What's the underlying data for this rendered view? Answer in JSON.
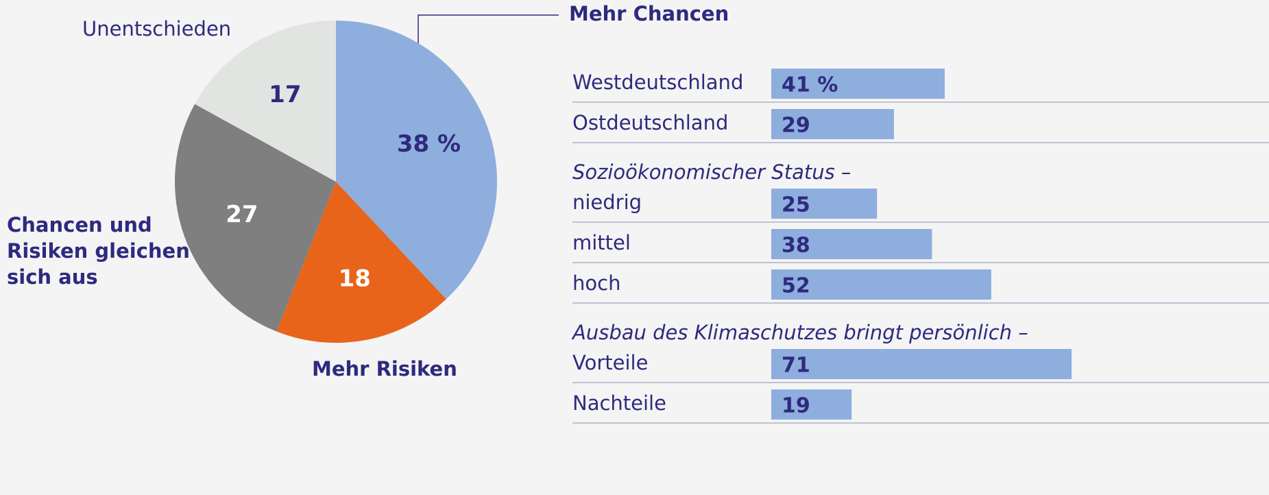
{
  "chart_data": [
    {
      "type": "pie",
      "categories": [
        "Mehr Chancen",
        "Mehr Risiken",
        "Chancen und Risiken gleichen sich aus",
        "Unentschieden"
      ],
      "values": [
        38,
        18,
        27,
        17
      ],
      "value_labels": [
        "38 %",
        "18",
        "27",
        "17"
      ],
      "colors": [
        "#8eaedd",
        "#e8641a",
        "#7f7f7f",
        "#e1e4e1"
      ]
    },
    {
      "type": "bar",
      "title": "Mehr Chancen",
      "color": "#8eaedd",
      "sections": [
        {
          "categories": [
            "Westdeutschland",
            "Ostdeutschland"
          ],
          "values": [
            41,
            29
          ],
          "value_labels": [
            "41 %",
            "29"
          ]
        },
        {
          "heading": "Sozioökonomischer Status –",
          "categories": [
            "niedrig",
            "mittel",
            "hoch"
          ],
          "values": [
            25,
            38,
            52
          ]
        },
        {
          "heading": "Ausbau des Klimaschutzes bringt persönlich –",
          "categories": [
            "Vorteile",
            "Nachteile"
          ],
          "values": [
            71,
            19
          ]
        }
      ]
    }
  ]
}
